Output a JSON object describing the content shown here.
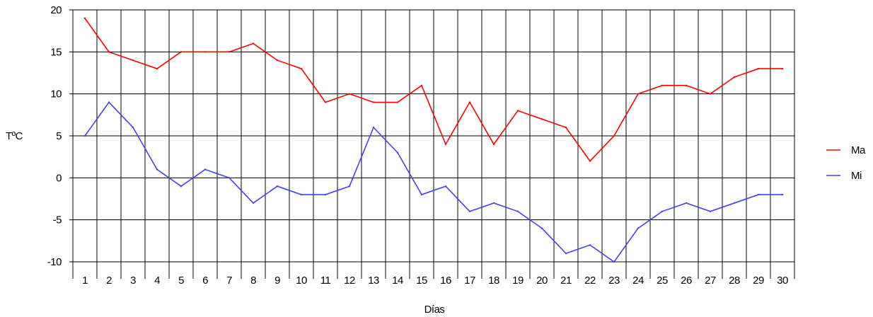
{
  "chart_data": {
    "type": "line",
    "title": "",
    "xlabel": "Días",
    "ylabel": "TºC",
    "x": [
      1,
      2,
      3,
      4,
      5,
      6,
      7,
      8,
      9,
      10,
      11,
      12,
      13,
      14,
      15,
      16,
      17,
      18,
      19,
      20,
      21,
      22,
      23,
      24,
      25,
      26,
      27,
      28,
      29,
      30
    ],
    "ylim": [
      -10,
      20
    ],
    "yticks": [
      -10,
      -5,
      0,
      5,
      10,
      15,
      20
    ],
    "grid": true,
    "legend_position": "right",
    "series": [
      {
        "name": "Ma",
        "color": "#ff0000",
        "values": [
          19,
          15,
          14,
          13,
          15,
          15,
          15,
          16,
          14,
          13,
          9,
          10,
          9,
          9,
          11,
          4,
          9,
          4,
          8,
          7,
          6,
          2,
          5,
          10,
          11,
          11,
          10,
          12,
          13,
          13
        ]
      },
      {
        "name": "Mi",
        "color": "#4040ff",
        "values": [
          5,
          9,
          6,
          1,
          -1,
          1,
          0,
          -3,
          -1,
          -2,
          -2,
          -1,
          6,
          3,
          -2,
          -1,
          -4,
          -3,
          -4,
          -6,
          -9,
          -8,
          -10,
          -6,
          -4,
          -3,
          -4,
          -3,
          -2,
          -2
        ]
      }
    ]
  }
}
